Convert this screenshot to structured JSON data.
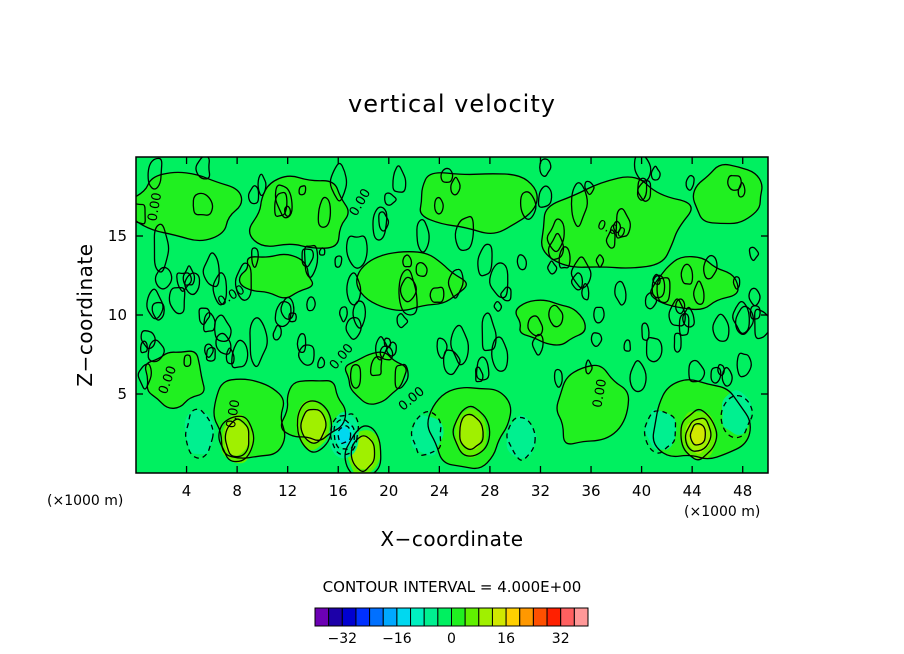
{
  "chart_data": {
    "type": "heatmap",
    "subtype": "filled contour",
    "title": "vertical velocity",
    "xlabel": "X−coordinate",
    "ylabel": "Z−coordinate",
    "x_unit": "(×1000 m)",
    "y_unit": "(×1000 m)",
    "xlim": [
      0,
      50
    ],
    "ylim": [
      0,
      20
    ],
    "x_ticks": [
      4,
      8,
      12,
      16,
      20,
      24,
      28,
      32,
      36,
      40,
      44,
      48
    ],
    "y_ticks": [
      5,
      10,
      15
    ],
    "contour_interval_label": "CONTOUR INTERVAL = 4.000E+00",
    "contour_label": "0.00",
    "colorbar": {
      "levels": [
        -36,
        -32,
        -28,
        -24,
        -20,
        -16,
        -12,
        -8,
        -4,
        0,
        4,
        8,
        12,
        16,
        20,
        24,
        28,
        32,
        36
      ],
      "tick_values": [
        -32,
        -16,
        0,
        16,
        32
      ],
      "tick_labels": [
        "−32",
        "−16",
        "0",
        "16",
        "32"
      ],
      "colors": [
        "#6c00b4",
        "#1c00a8",
        "#0000d0",
        "#0030ff",
        "#0070ff",
        "#00a8ff",
        "#00d8f0",
        "#00f0c0",
        "#00f090",
        "#00f060",
        "#20f020",
        "#60f000",
        "#a0f000",
        "#d0e800",
        "#ffd000",
        "#ff9800",
        "#ff5000",
        "#ff2000",
        "#ff6060",
        "#ff9898"
      ]
    },
    "features": [
      {
        "kind": "updraft",
        "x": 8,
        "z": 2.2,
        "max": 8
      },
      {
        "kind": "updraft",
        "x": 14,
        "z": 3.0,
        "max": 8
      },
      {
        "kind": "updraft",
        "x": 18,
        "z": 1.3,
        "max": 8
      },
      {
        "kind": "updraft",
        "x": 26.5,
        "z": 2.6,
        "max": 8
      },
      {
        "kind": "updraft",
        "x": 44.5,
        "z": 2.4,
        "max": 12
      },
      {
        "kind": "downdraft",
        "x": 5,
        "z": 2.5,
        "min": -4
      },
      {
        "kind": "downdraft",
        "x": 16.5,
        "z": 2.4,
        "min": -12
      },
      {
        "kind": "downdraft",
        "x": 23,
        "z": 2.4,
        "min": -4
      },
      {
        "kind": "downdraft",
        "x": 30.5,
        "z": 2.3,
        "min": -4
      },
      {
        "kind": "downdraft",
        "x": 41.5,
        "z": 2.7,
        "min": -4
      },
      {
        "kind": "downdraft",
        "x": 47.5,
        "z": 3.7,
        "min": -4
      }
    ]
  },
  "colors": {
    "background": "#ffffff",
    "field_zero_band": "#00f060",
    "field_pos_band": "#20f020",
    "field_neg_band": "#00f090",
    "contour_line": "#000000"
  }
}
